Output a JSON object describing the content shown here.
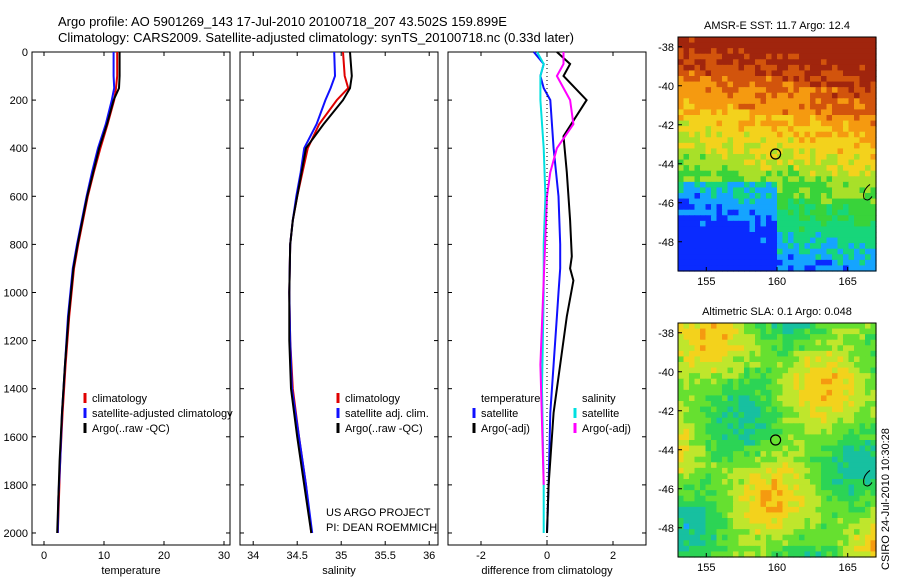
{
  "title": {
    "line1": "Argo profile: AO 5901269_143 17-Jul-2010 20100718_207 43.502S 159.899E",
    "line2": "Climatology: CARS2009. Satellite-adjusted climatology: synTS_20100718.nc (0.33d later)"
  },
  "colors": {
    "climatology": "#e00000",
    "satellite": "#1010ff",
    "argo": "#000000",
    "satellite_sal": "#00e0e0",
    "argo_sal": "#ff00ff"
  },
  "chart_data": [
    {
      "type": "line",
      "xlabel": "temperature",
      "ylabel": "",
      "xlim": [
        -2,
        31
      ],
      "ylim": [
        2050,
        0
      ],
      "xticks": [
        0,
        10,
        20,
        30
      ],
      "yticks": [
        0,
        200,
        400,
        600,
        800,
        1000,
        1200,
        1400,
        1600,
        1800,
        2000
      ],
      "legend": {
        "position": "middle-left",
        "labels": [
          "climatology",
          "satellite-adjusted climatology",
          "Argo(..raw -QC)"
        ]
      },
      "series": [
        {
          "name": "climatology",
          "color": "#e00000",
          "x": [
            12.2,
            12.2,
            12.0,
            11.7,
            10.6,
            9.4,
            8.3,
            7.3,
            6.5,
            5.7,
            5.0,
            4.2,
            3.6,
            3.1,
            2.7,
            2.5,
            2.3
          ],
          "y": [
            0,
            100,
            150,
            200,
            300,
            400,
            500,
            600,
            700,
            800,
            900,
            1100,
            1300,
            1500,
            1700,
            1850,
            2000
          ]
        },
        {
          "name": "satellite-adjusted climatology",
          "color": "#1010ff",
          "x": [
            11.6,
            11.6,
            11.7,
            11.3,
            10.3,
            9.0,
            8.0,
            7.1,
            6.3,
            5.5,
            4.8,
            4.0,
            3.5,
            3.0,
            2.7,
            2.4,
            2.3
          ],
          "y": [
            0,
            100,
            150,
            200,
            300,
            400,
            500,
            600,
            700,
            800,
            900,
            1100,
            1300,
            1500,
            1700,
            1850,
            2000
          ]
        },
        {
          "name": "Argo(..raw -QC)",
          "color": "#000000",
          "x": [
            12.6,
            12.6,
            12.5,
            11.6,
            10.5,
            9.2,
            8.2,
            7.2,
            6.4,
            5.6,
            4.9,
            4.1,
            3.5,
            3.0,
            2.6,
            2.4,
            2.2
          ],
          "y": [
            0,
            100,
            150,
            200,
            300,
            400,
            500,
            600,
            700,
            800,
            900,
            1100,
            1300,
            1500,
            1700,
            1850,
            2000
          ]
        }
      ]
    },
    {
      "type": "line",
      "xlabel": "salinity",
      "ylabel": "",
      "xlim": [
        33.85,
        36.1
      ],
      "ylim": [
        2050,
        0
      ],
      "xticks": [
        34,
        34.5,
        35,
        35.5,
        36
      ],
      "yticks": [],
      "legend": {
        "position": "middle-right",
        "labels": [
          "climatology",
          "satellite adj. clim.",
          "Argo(..raw -QC)"
        ]
      },
      "annotation": [
        "US ARGO PROJECT",
        "PI: DEAN ROEMMICH"
      ],
      "series": [
        {
          "name": "climatology",
          "color": "#e00000",
          "x": [
            35.02,
            35.04,
            35.08,
            34.95,
            34.75,
            34.62,
            34.56,
            34.5,
            34.45,
            34.42,
            34.41,
            34.42,
            34.45,
            34.52,
            34.6,
            34.66
          ],
          "y": [
            0,
            100,
            150,
            200,
            300,
            400,
            500,
            600,
            700,
            800,
            1000,
            1200,
            1400,
            1600,
            1800,
            2000
          ]
        },
        {
          "name": "satellite adj. clim.",
          "color": "#1010ff",
          "x": [
            34.92,
            34.93,
            34.88,
            34.82,
            34.72,
            34.58,
            34.54,
            34.49,
            34.45,
            34.42,
            34.41,
            34.42,
            34.44,
            34.52,
            34.6,
            34.67
          ],
          "y": [
            0,
            100,
            150,
            200,
            300,
            400,
            500,
            600,
            700,
            800,
            1000,
            1200,
            1400,
            1600,
            1800,
            2000
          ]
        },
        {
          "name": "Argo(..raw -QC)",
          "color": "#000000",
          "x": [
            35.1,
            35.12,
            35.1,
            35.02,
            34.8,
            34.6,
            34.55,
            34.5,
            34.45,
            34.42,
            34.41,
            34.41,
            34.43,
            34.5,
            34.58,
            34.66
          ],
          "y": [
            0,
            100,
            150,
            200,
            300,
            400,
            500,
            600,
            700,
            800,
            1000,
            1200,
            1400,
            1600,
            1800,
            2000
          ]
        }
      ]
    },
    {
      "type": "line",
      "xlabel": "difference from climatology",
      "ylabel": "",
      "xlim": [
        -3,
        3
      ],
      "ylim": [
        2050,
        0
      ],
      "xticks": [
        -2,
        0,
        2
      ],
      "yticks": [],
      "legend": {
        "position": "middle",
        "labels": [
          "temperature",
          "satellite",
          "Argo(-adj)",
          "salinity",
          "satellite",
          "Argo(-adj)"
        ]
      },
      "series": [
        {
          "name": "temperature satellite",
          "color": "#1010ff",
          "x": [
            -0.4,
            -0.1,
            -0.2,
            -0.1,
            0.1,
            0.2,
            0.35,
            0.4,
            0.4,
            0.35,
            0.3,
            0.2,
            0.1,
            0.05,
            0.0
          ],
          "y": [
            0,
            50,
            100,
            150,
            200,
            400,
            600,
            800,
            900,
            1000,
            1100,
            1300,
            1500,
            1800,
            2000
          ]
        },
        {
          "name": "temperature Argo(-adj)",
          "color": "#000000",
          "x": [
            0.3,
            0.7,
            0.5,
            1.2,
            0.5,
            0.6,
            0.7,
            0.75,
            0.7,
            0.8,
            0.6,
            0.4,
            0.2,
            0.05,
            0.0
          ],
          "y": [
            0,
            50,
            100,
            200,
            350,
            500,
            700,
            850,
            900,
            950,
            1100,
            1300,
            1500,
            1800,
            2000
          ]
        },
        {
          "name": "salinity satellite",
          "color": "#00e0e0",
          "x": [
            -0.3,
            -0.1,
            -0.2,
            -0.2,
            -0.1,
            -0.05,
            -0.1,
            -0.1,
            -0.15,
            -0.1,
            -0.1
          ],
          "y": [
            0,
            50,
            100,
            200,
            400,
            600,
            800,
            1000,
            1400,
            1800,
            2000
          ]
        },
        {
          "name": "salinity Argo(-adj)",
          "color": "#ff00ff",
          "x": [
            0.5,
            0.5,
            0.3,
            0.7,
            0.8,
            0.3,
            0.1,
            0.0,
            -0.2,
            -0.1
          ],
          "y": [
            0,
            50,
            100,
            200,
            300,
            400,
            500,
            600,
            1300,
            1800
          ],
          "stop_at": 500
        }
      ]
    },
    {
      "type": "heatmap",
      "title": "AMSR-E SST: 11.7 Argo: 12.4",
      "xlim": [
        153,
        167
      ],
      "ylim": [
        -49.5,
        -37.5
      ],
      "xticks": [
        155,
        160,
        165
      ],
      "yticks": [
        -38,
        -40,
        -42,
        -44,
        -46,
        -48
      ],
      "marker": {
        "lon": 159.9,
        "lat": -43.5
      },
      "palette": [
        "#0a2bff",
        "#15a4ff",
        "#17d67a",
        "#39d33a",
        "#a8e029",
        "#f3d21c",
        "#f59a10",
        "#d2540c",
        "#a0250d"
      ]
    },
    {
      "type": "heatmap",
      "title": "Altimetric SLA: 0.1 Argo: 0.048",
      "xlim": [
        153,
        167
      ],
      "ylim": [
        -49.5,
        -37.5
      ],
      "xticks": [
        155,
        160,
        165
      ],
      "yticks": [
        -38,
        -40,
        -42,
        -44,
        -46,
        -48
      ],
      "marker": {
        "lon": 159.9,
        "lat": -43.5
      },
      "palette": [
        "#15a4ff",
        "#17c0a0",
        "#2cd455",
        "#66e030",
        "#bfe62c",
        "#f3d21c",
        "#f59a10"
      ]
    }
  ],
  "signature": "CSIRO 24-Jul-2010 10:30:28"
}
